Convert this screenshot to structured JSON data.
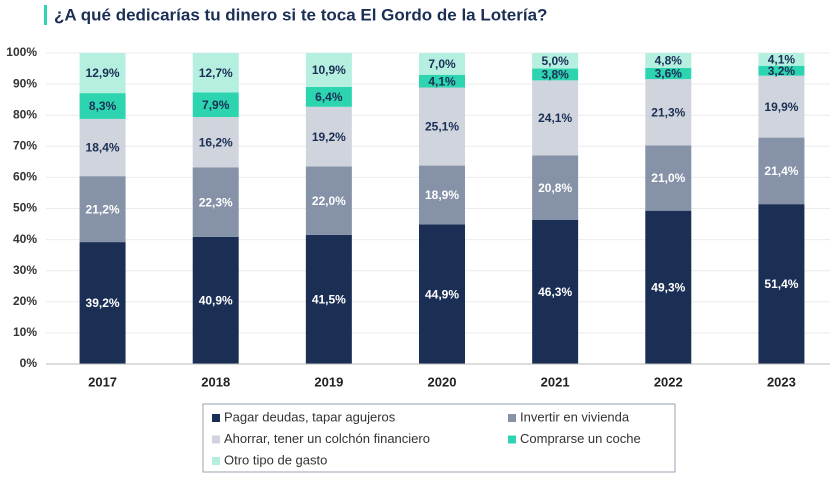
{
  "chart_data": {
    "type": "stacked_bar",
    "title": "¿A qué dedicarías tu dinero si te toca El Gordo de la Lotería?",
    "categories": [
      "2017",
      "2018",
      "2019",
      "2020",
      "2021",
      "2022",
      "2023"
    ],
    "series": [
      {
        "name": "Pagar deudas, tapar agujeros",
        "color": "#1b2f55",
        "values": [
          39.2,
          40.9,
          41.5,
          44.9,
          46.3,
          49.3,
          51.4
        ],
        "value_labels": [
          "39,2%",
          "40,9%",
          "41,5%",
          "44,9%",
          "46,3%",
          "49,3%",
          "51,4%"
        ]
      },
      {
        "name": "Invertir en vivienda",
        "color": "#8592a8",
        "values": [
          21.2,
          22.3,
          22.0,
          18.9,
          20.8,
          21.0,
          21.4
        ],
        "value_labels": [
          "21,2%",
          "22,3%",
          "22,0%",
          "18,9%",
          "20,8%",
          "21,0%",
          "21,4%"
        ]
      },
      {
        "name": "Ahorrar, tener un colchón financiero",
        "color": "#d0d4dd",
        "values": [
          18.4,
          16.2,
          19.2,
          25.1,
          24.1,
          21.3,
          19.9
        ],
        "value_labels": [
          "18,4%",
          "16,2%",
          "19,2%",
          "25,1%",
          "24,1%",
          "21,3%",
          "19,9%"
        ]
      },
      {
        "name": "Comprarse un coche",
        "color": "#2dd4b0",
        "values": [
          8.3,
          7.9,
          6.4,
          4.1,
          3.8,
          3.6,
          3.2
        ],
        "value_labels": [
          "8,3%",
          "7,9%",
          "6,4%",
          "4,1%",
          "3,8%",
          "3,6%",
          "3,2%"
        ]
      },
      {
        "name": "Otro tipo de gasto",
        "color": "#b4efe0",
        "values": [
          12.9,
          12.7,
          10.9,
          7.0,
          5.0,
          4.8,
          4.1
        ],
        "value_labels": [
          "12,9%",
          "12,7%",
          "10,9%",
          "7,0%",
          "5,0%",
          "4,8%",
          "4,1%"
        ]
      }
    ],
    "ylim": [
      0,
      100
    ],
    "yticks": [
      {
        "value": 0,
        "label": "0%"
      },
      {
        "value": 10,
        "label": "10%"
      },
      {
        "value": 20,
        "label": "20%"
      },
      {
        "value": 30,
        "label": "30%"
      },
      {
        "value": 40,
        "label": "40%"
      },
      {
        "value": 50,
        "label": "50%"
      },
      {
        "value": 60,
        "label": "60%"
      },
      {
        "value": 70,
        "label": "70%"
      },
      {
        "value": 80,
        "label": "80%"
      },
      {
        "value": 90,
        "label": "90%"
      },
      {
        "value": 100,
        "label": "100%"
      }
    ],
    "grid": true
  }
}
